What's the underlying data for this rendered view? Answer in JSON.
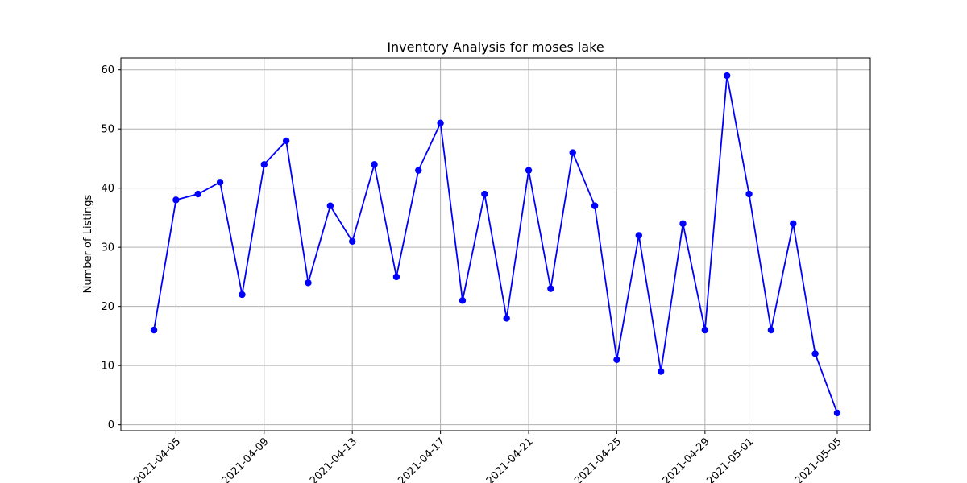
{
  "chart_data": {
    "type": "line",
    "title": "Inventory Analysis for moses lake",
    "xlabel": "",
    "ylabel": "Number of Listings",
    "grid": true,
    "line_color": "#0000ff",
    "marker": "circle",
    "x_ticks": [
      "2021-04-05",
      "2021-04-09",
      "2021-04-13",
      "2021-04-17",
      "2021-04-21",
      "2021-04-25",
      "2021-04-29",
      "2021-05-01",
      "2021-05-05"
    ],
    "y_ticks": [
      0,
      10,
      20,
      30,
      40,
      50,
      60
    ],
    "xlim": [
      "2021-04-02T12:00",
      "2021-05-06T12:00"
    ],
    "ylim": [
      -1,
      62
    ],
    "x": [
      "2021-04-04",
      "2021-04-05",
      "2021-04-06",
      "2021-04-07",
      "2021-04-08",
      "2021-04-09",
      "2021-04-10",
      "2021-04-11",
      "2021-04-12",
      "2021-04-13",
      "2021-04-14",
      "2021-04-15",
      "2021-04-16",
      "2021-04-17",
      "2021-04-18",
      "2021-04-19",
      "2021-04-20",
      "2021-04-21",
      "2021-04-22",
      "2021-04-23",
      "2021-04-24",
      "2021-04-25",
      "2021-04-26",
      "2021-04-27",
      "2021-04-28",
      "2021-04-29",
      "2021-04-30",
      "2021-05-01",
      "2021-05-02",
      "2021-05-03",
      "2021-05-04",
      "2021-05-05"
    ],
    "series": [
      {
        "values": [
          16,
          38,
          39,
          41,
          22,
          44,
          48,
          24,
          37,
          31,
          44,
          25,
          43,
          51,
          21,
          39,
          18,
          43,
          23,
          46,
          37,
          11,
          32,
          9,
          34,
          16,
          59,
          39,
          16,
          34,
          12,
          2
        ]
      }
    ]
  }
}
